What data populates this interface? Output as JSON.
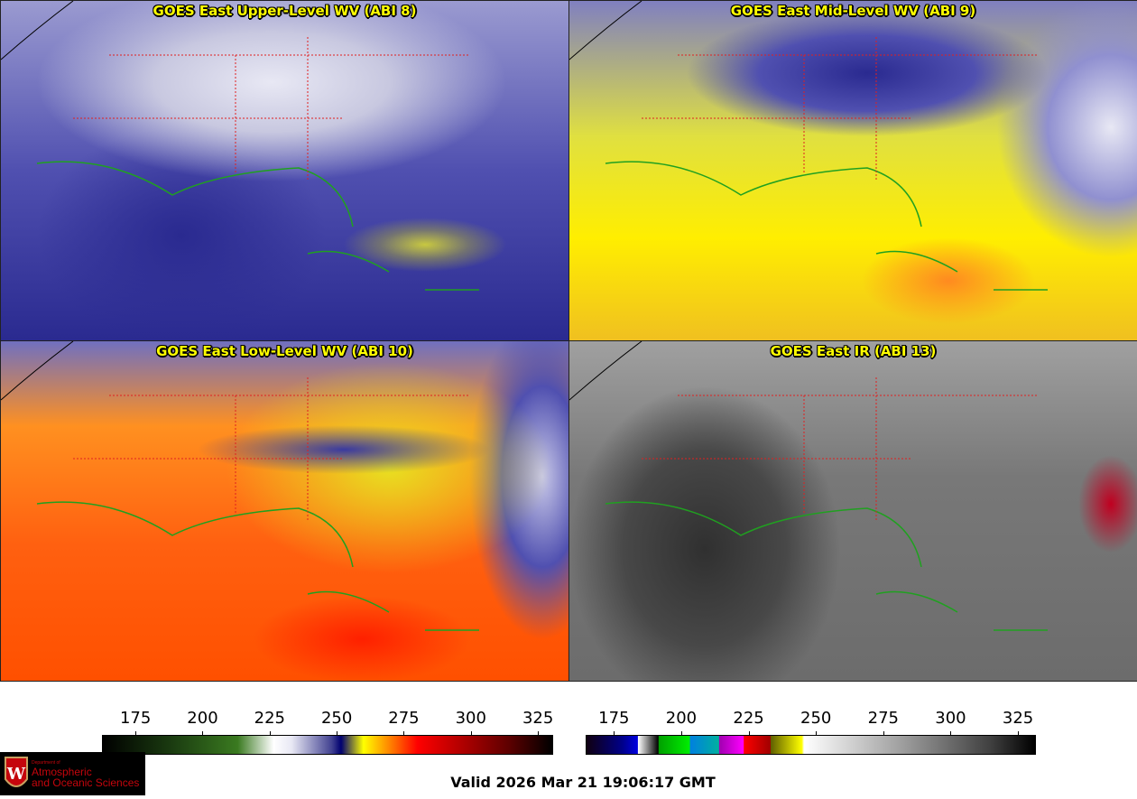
{
  "panels": [
    {
      "title": "GOES East Upper-Level WV (ABI 8)"
    },
    {
      "title": "GOES East Mid-Level WV (ABI 9)"
    },
    {
      "title": "GOES East Low-Level WV (ABI 10)"
    },
    {
      "title": "GOES East IR (ABI 13)"
    }
  ],
  "colorbars": [
    {
      "name": "wv",
      "ticks": [
        "175",
        "200",
        "225",
        "250",
        "275",
        "300",
        "325"
      ],
      "range": [
        162.5,
        330
      ]
    },
    {
      "name": "ir",
      "ticks": [
        "175",
        "200",
        "225",
        "250",
        "275",
        "300",
        "325"
      ],
      "range": [
        164.5,
        331
      ]
    }
  ],
  "logo": {
    "line1": "Department of",
    "line2": "Atmospheric",
    "line3": "and Oceanic Sciences"
  },
  "valid_time": "Valid 2026 Mar 21 19:06:17 GMT",
  "colors": {
    "title": "#ffff00",
    "state_borders": "#e02020",
    "coastlines": "#20a020"
  }
}
